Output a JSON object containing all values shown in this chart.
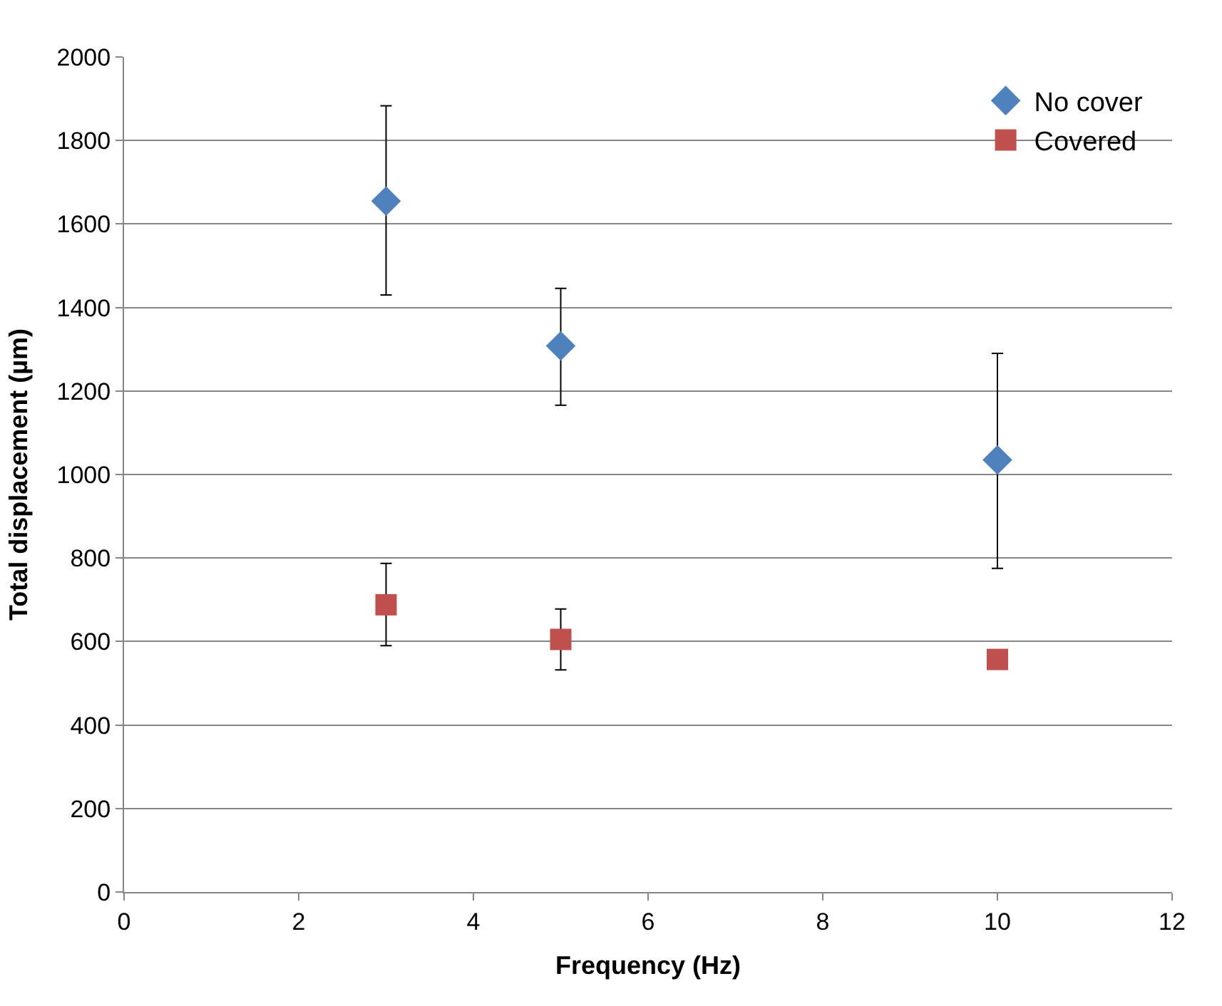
{
  "chart_data": {
    "type": "scatter",
    "xlabel": "Frequency (Hz)",
    "ylabel": "Total displacement (µm)",
    "x": [
      3,
      5,
      10
    ],
    "series": [
      {
        "name": "No cover",
        "color": "#4f81bd",
        "marker": "diamond",
        "values": [
          1655,
          1308,
          1035
        ],
        "errors": [
          [
            1430,
            1883
          ],
          [
            1166,
            1446
          ],
          [
            775,
            1290
          ]
        ]
      },
      {
        "name": "Covered",
        "color": "#c0504d",
        "marker": "square",
        "values": [
          688,
          605,
          557
        ],
        "errors": [
          [
            590,
            787
          ],
          [
            532,
            678
          ],
          null
        ]
      }
    ],
    "xlim": [
      0,
      12
    ],
    "xticks": [
      0,
      2,
      4,
      6,
      8,
      10,
      12
    ],
    "ylim": [
      0,
      2000
    ],
    "yticks": [
      0,
      200,
      400,
      600,
      800,
      1000,
      1200,
      1400,
      1600,
      1800,
      2000
    ],
    "grid": "y",
    "legend": "top right"
  }
}
